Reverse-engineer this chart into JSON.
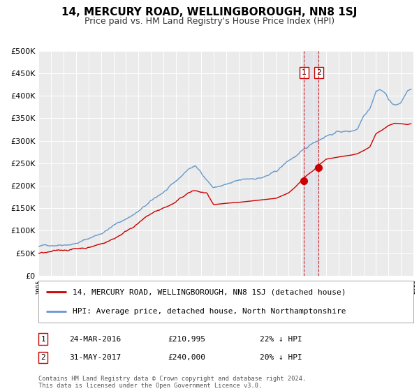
{
  "title": "14, MERCURY ROAD, WELLINGBOROUGH, NN8 1SJ",
  "subtitle": "Price paid vs. HM Land Registry's House Price Index (HPI)",
  "title_fontsize": 11,
  "subtitle_fontsize": 9,
  "background_color": "#ffffff",
  "plot_bg_color": "#ebebeb",
  "grid_color": "#ffffff",
  "red_line_label": "14, MERCURY ROAD, WELLINGBOROUGH, NN8 1SJ (detached house)",
  "blue_line_label": "HPI: Average price, detached house, North Northamptonshire",
  "sale1_date": "24-MAR-2016",
  "sale1_price": "£210,995",
  "sale1_hpi": "22% ↓ HPI",
  "sale1_x": 2016.22,
  "sale1_y": 210995,
  "sale2_date": "31-MAY-2017",
  "sale2_price": "£240,000",
  "sale2_hpi": "20% ↓ HPI",
  "sale2_x": 2017.41,
  "sale2_y": 240000,
  "vline1_x": 2016.22,
  "vline2_x": 2017.41,
  "ylim": [
    0,
    500000
  ],
  "xlim_start": 1995,
  "xlim_end": 2025,
  "footer": "Contains HM Land Registry data © Crown copyright and database right 2024.\nThis data is licensed under the Open Government Licence v3.0.",
  "red_color": "#cc0000",
  "blue_color": "#6699cc",
  "vline_color": "#cc0000",
  "marker_color": "#cc0000",
  "span_color": "#aabbdd"
}
